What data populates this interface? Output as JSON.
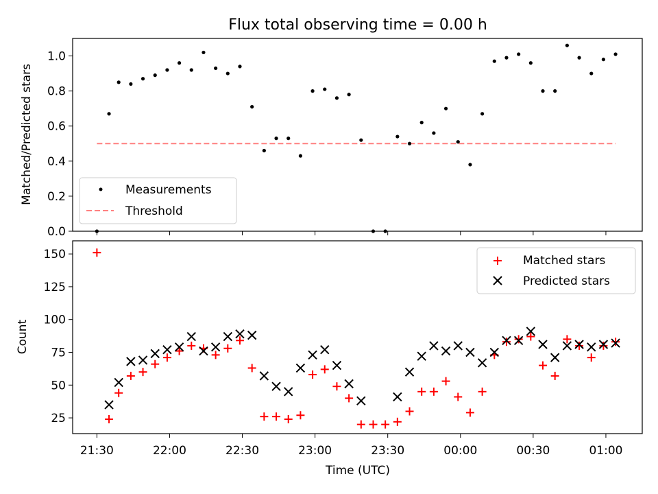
{
  "chart_data": [
    {
      "type": "scatter",
      "title": "Flux total observing time = 0.00 h",
      "xlabel": "",
      "ylabel": "Matched/Predicted stars",
      "x_axis": "time",
      "xlim": [
        "21:20",
        "01:15"
      ],
      "ylim": [
        0,
        1.1
      ],
      "y_ticks": [
        "0.0",
        "0.2",
        "0.4",
        "0.6",
        "0.8",
        "1.0"
      ],
      "x": [
        "21:30",
        "21:35",
        "21:39",
        "21:44",
        "21:49",
        "21:54",
        "21:59",
        "22:04",
        "22:09",
        "22:14",
        "22:19",
        "22:24",
        "22:29",
        "22:34",
        "22:39",
        "22:44",
        "22:49",
        "22:54",
        "22:59",
        "23:04",
        "23:09",
        "23:14",
        "23:19",
        "23:24",
        "23:29",
        "23:34",
        "23:39",
        "23:44",
        "23:49",
        "23:54",
        "23:59",
        "00:04",
        "00:09",
        "00:14",
        "00:19",
        "00:24",
        "00:29",
        "00:34",
        "00:39",
        "00:44",
        "00:49",
        "00:54",
        "00:59",
        "01:04"
      ],
      "series": [
        {
          "name": "Measurements",
          "values": [
            0.0,
            0.67,
            0.85,
            0.84,
            0.87,
            0.89,
            0.92,
            0.96,
            0.92,
            1.02,
            0.93,
            0.9,
            0.94,
            0.71,
            0.46,
            0.53,
            0.53,
            0.43,
            0.8,
            0.81,
            0.76,
            0.78,
            0.52,
            0.0,
            0.0,
            0.54,
            0.5,
            0.62,
            0.56,
            0.7,
            0.51,
            0.38,
            0.67,
            0.97,
            0.99,
            1.01,
            0.96,
            0.8,
            0.8,
            1.06,
            0.99,
            0.9,
            0.98,
            1.01
          ]
        },
        {
          "name": "Threshold",
          "x": [
            "21:30",
            "01:04"
          ],
          "values": [
            0.5,
            0.5
          ]
        }
      ],
      "legend": "lower-left",
      "colors": {
        "Measurements": "#000000",
        "Threshold": "#ff8080"
      }
    },
    {
      "type": "scatter",
      "title": "",
      "xlabel": "Time (UTC)",
      "ylabel": "Count",
      "x_axis": "time",
      "xlim": [
        "21:20",
        "01:15"
      ],
      "ylim": [
        13,
        160
      ],
      "y_ticks": [
        "25",
        "50",
        "75",
        "100",
        "125",
        "150"
      ],
      "x_ticks": [
        "21:30",
        "22:00",
        "22:30",
        "23:00",
        "23:30",
        "00:00",
        "00:30",
        "01:00"
      ],
      "x": [
        "21:30",
        "21:35",
        "21:39",
        "21:44",
        "21:49",
        "21:54",
        "21:59",
        "22:04",
        "22:09",
        "22:14",
        "22:19",
        "22:24",
        "22:29",
        "22:34",
        "22:39",
        "22:44",
        "22:49",
        "22:54",
        "22:59",
        "23:04",
        "23:09",
        "23:14",
        "23:19",
        "23:24",
        "23:29",
        "23:34",
        "23:39",
        "23:44",
        "23:49",
        "23:54",
        "23:59",
        "00:04",
        "00:09",
        "00:14",
        "00:19",
        "00:24",
        "00:29",
        "00:34",
        "00:39",
        "00:44",
        "00:49",
        "00:54",
        "00:59",
        "01:04"
      ],
      "series": [
        {
          "name": "Matched stars",
          "values": [
            151,
            24,
            44,
            57,
            60,
            66,
            71,
            76,
            80,
            78,
            73,
            78,
            84,
            63,
            26,
            26,
            24,
            27,
            58,
            62,
            49,
            40,
            20,
            20,
            20,
            22,
            30,
            45,
            45,
            53,
            41,
            29,
            45,
            73,
            83,
            85,
            87,
            65,
            57,
            85,
            80,
            71,
            80,
            83
          ]
        },
        {
          "name": "Predicted stars",
          "values": [
            null,
            35,
            52,
            68,
            69,
            74,
            77,
            79,
            87,
            76,
            79,
            87,
            89,
            88,
            57,
            49,
            45,
            63,
            73,
            77,
            65,
            51,
            38,
            null,
            null,
            41,
            60,
            72,
            80,
            76,
            80,
            75,
            67,
            75,
            84,
            84,
            91,
            81,
            71,
            80,
            81,
            79,
            81,
            82
          ]
        }
      ],
      "legend": "top-right",
      "colors": {
        "Matched stars": "#ff0000",
        "Predicted stars": "#000000"
      }
    }
  ]
}
